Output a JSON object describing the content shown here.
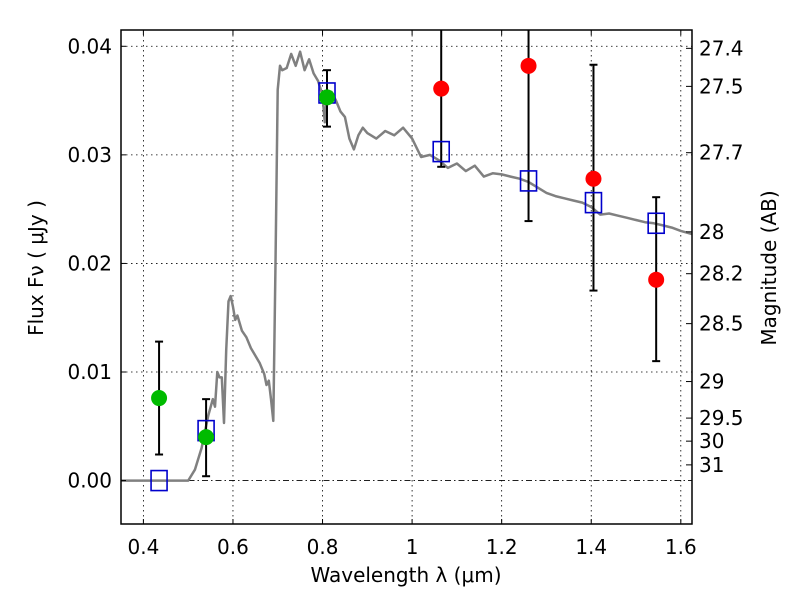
{
  "chart_data": {
    "type": "scatter",
    "title": "",
    "xlabel": "Wavelength  λ (μm)",
    "ylabel": "Flux  Fν  ( μJy )",
    "y2label": "Magnitude (AB)",
    "xlim": [
      0.35,
      1.625
    ],
    "ylim": [
      -0.004,
      0.0415
    ],
    "grid": true,
    "legend": "none",
    "x_ticks": [
      {
        "value": 0.4,
        "label": "0.4"
      },
      {
        "value": 0.6,
        "label": "0.6"
      },
      {
        "value": 0.8,
        "label": "0.8"
      },
      {
        "value": 1.0,
        "label": "1"
      },
      {
        "value": 1.2,
        "label": "1.2"
      },
      {
        "value": 1.4,
        "label": "1.4"
      },
      {
        "value": 1.6,
        "label": "1.6"
      }
    ],
    "y_ticks": [
      {
        "value": 0.0,
        "label": "0.00"
      },
      {
        "value": 0.01,
        "label": "0.01"
      },
      {
        "value": 0.02,
        "label": "0.02"
      },
      {
        "value": 0.03,
        "label": "0.03"
      },
      {
        "value": 0.04,
        "label": "0.04"
      }
    ],
    "y2_ticks": [
      {
        "value": 27.4,
        "label": "27.4"
      },
      {
        "value": 27.5,
        "label": "27.5"
      },
      {
        "value": 27.7,
        "label": "27.7"
      },
      {
        "value": 28,
        "label": "28"
      },
      {
        "value": 28.2,
        "label": "28.2"
      },
      {
        "value": 28.5,
        "label": "28.5"
      },
      {
        "value": 29,
        "label": "29"
      },
      {
        "value": 29.5,
        "label": "29.5"
      },
      {
        "value": 30,
        "label": "30"
      },
      {
        "value": 31,
        "label": "31"
      }
    ],
    "zero_line": 0.0,
    "series": [
      {
        "name": "model spectrum",
        "kind": "line",
        "color": "#808080",
        "x": [
          0.35,
          0.5,
          0.515,
          0.53,
          0.545,
          0.555,
          0.56,
          0.565,
          0.57,
          0.575,
          0.58,
          0.585,
          0.59,
          0.595,
          0.6,
          0.605,
          0.61,
          0.62,
          0.63,
          0.64,
          0.65,
          0.66,
          0.67,
          0.675,
          0.68,
          0.685,
          0.69,
          0.695,
          0.7,
          0.705,
          0.71,
          0.72,
          0.73,
          0.74,
          0.75,
          0.76,
          0.77,
          0.78,
          0.79,
          0.8,
          0.805,
          0.81,
          0.82,
          0.83,
          0.84,
          0.85,
          0.86,
          0.87,
          0.88,
          0.89,
          0.9,
          0.92,
          0.94,
          0.96,
          0.98,
          1.0,
          1.02,
          1.04,
          1.06,
          1.08,
          1.1,
          1.12,
          1.14,
          1.16,
          1.18,
          1.2,
          1.22,
          1.24,
          1.26,
          1.28,
          1.3,
          1.32,
          1.34,
          1.36,
          1.38,
          1.4,
          1.42,
          1.44,
          1.46,
          1.48,
          1.5,
          1.52,
          1.54,
          1.56,
          1.58,
          1.6,
          1.625
        ],
        "y": [
          0.0,
          0.0,
          0.001,
          0.003,
          0.006,
          0.0075,
          0.0068,
          0.01,
          0.0095,
          0.0095,
          0.0053,
          0.012,
          0.0165,
          0.017,
          0.016,
          0.0148,
          0.0152,
          0.0138,
          0.0132,
          0.0122,
          0.0115,
          0.0108,
          0.0098,
          0.0088,
          0.0092,
          0.0075,
          0.0055,
          0.02,
          0.036,
          0.0382,
          0.0378,
          0.038,
          0.0393,
          0.0382,
          0.0395,
          0.0378,
          0.0388,
          0.0375,
          0.0368,
          0.0355,
          0.033,
          0.0355,
          0.0358,
          0.035,
          0.034,
          0.0335,
          0.0315,
          0.0305,
          0.0318,
          0.0325,
          0.032,
          0.0315,
          0.0322,
          0.0318,
          0.0325,
          0.0315,
          0.0298,
          0.03,
          0.0295,
          0.0288,
          0.0292,
          0.0285,
          0.029,
          0.028,
          0.0283,
          0.0282,
          0.028,
          0.0278,
          0.0275,
          0.027,
          0.0265,
          0.0262,
          0.026,
          0.0258,
          0.0256,
          0.0252,
          0.0245,
          0.0246,
          0.0244,
          0.0242,
          0.024,
          0.0238,
          0.0237,
          0.0235,
          0.0233,
          0.023,
          0.0227
        ]
      },
      {
        "name": "model photometry",
        "kind": "open-square",
        "color": "#0000cc",
        "x": [
          0.435,
          0.54,
          0.81,
          1.065,
          1.26,
          1.405,
          1.545
        ],
        "y": [
          0.0,
          0.0046,
          0.0357,
          0.0303,
          0.0276,
          0.0256,
          0.0237
        ]
      },
      {
        "name": "detections",
        "kind": "filled-circle",
        "color": "#00bb00",
        "x": [
          0.435,
          0.54,
          0.81
        ],
        "y": [
          0.0076,
          0.004,
          0.0353
        ],
        "yerr_low": [
          0.0052,
          0.0036,
          0.0027
        ],
        "yerr_high": [
          0.0052,
          0.0035,
          0.0025
        ]
      },
      {
        "name": "upper-limit measurements",
        "kind": "filled-circle",
        "color": "#ff0000",
        "x": [
          1.065,
          1.26,
          1.405,
          1.545
        ],
        "y": [
          0.0361,
          0.0382,
          0.0278,
          0.0185
        ],
        "yerr_low": [
          0.0072,
          0.0143,
          0.0103,
          0.0075
        ],
        "yerr_high": [
          0.006,
          0.004,
          0.0105,
          0.0076
        ]
      }
    ]
  }
}
